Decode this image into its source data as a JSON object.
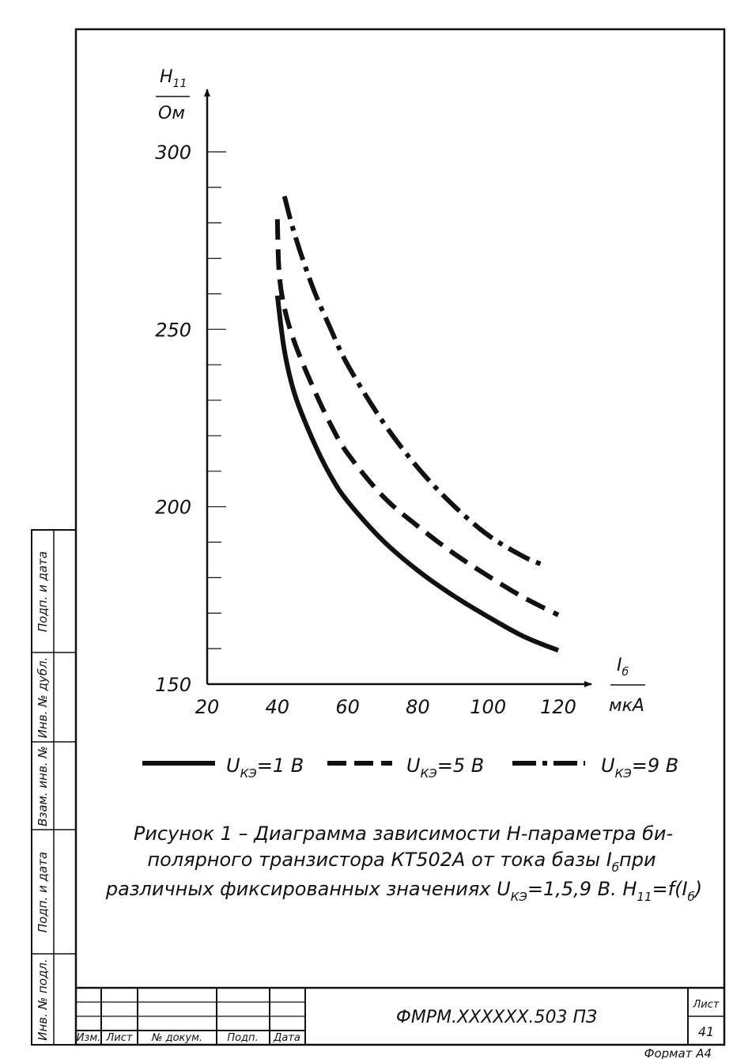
{
  "chart_data": {
    "type": "line",
    "y_axis": {
      "label_top": "H",
      "label_top_sub": "11",
      "label_bottom": "Ом",
      "ylim": [
        150,
        300
      ],
      "ticks": [
        150,
        200,
        250,
        300
      ]
    },
    "x_axis": {
      "label_top": "I",
      "label_top_sub": "б",
      "label_bottom": "мкА",
      "xlim": [
        20,
        120
      ],
      "ticks": [
        20,
        40,
        60,
        80,
        100,
        120
      ]
    },
    "series": [
      {
        "name": "1 В",
        "style": "solid",
        "x": [
          40,
          42,
          45,
          50,
          55,
          60,
          70,
          80,
          90,
          100,
          110,
          120
        ],
        "y": [
          259.5,
          244,
          231.5,
          219,
          209,
          201.5,
          190.5,
          182,
          175,
          169,
          163.5,
          159.5
        ]
      },
      {
        "name": "5 В",
        "style": "dashed",
        "x": [
          40,
          40.5,
          42,
          45,
          50,
          55,
          60,
          70,
          80,
          90,
          100,
          110,
          120
        ],
        "y": [
          281,
          266,
          256,
          246,
          234,
          223.5,
          215,
          203,
          194.5,
          187,
          180.5,
          174.5,
          169.5
        ]
      },
      {
        "name": "9 В",
        "style": "dash-dot",
        "x": [
          42,
          45,
          50,
          55,
          60,
          70,
          80,
          90,
          100,
          110,
          116
        ],
        "y": [
          287.5,
          276.5,
          262,
          250.5,
          240,
          224,
          211,
          200.5,
          192,
          186,
          183.5
        ]
      }
    ],
    "legend": {
      "prefix": "U",
      "sub": "КЭ",
      "placement": "bottom"
    }
  },
  "caption": {
    "line1_a": "Рисунок 1   – Диаграмма зависимости H-параметра би-",
    "line2_a": "полярного транзистора КТ502А от тока базы I",
    "line2_sub": "б",
    "line2_b": "при",
    "line3_a": "различных фиксированных значениях U",
    "line3_sub1": "КЭ",
    "line3_b": "=1,5,9 В.   H",
    "line3_sub2": "11",
    "line3_c": "=f(I",
    "line3_sub3": "б",
    "line3_d": ")"
  },
  "side_stamp": [
    "Подп. и дата",
    "Инв. № дубл.",
    "Взам. инв. №",
    "Подп. и дата",
    "Инв. № подл."
  ],
  "title_block": {
    "columns": [
      "Изм.",
      "Лист",
      "№ докум.",
      "Подп.",
      "Дата"
    ],
    "designation": "ФМРМ.XXXXXX.503 ПЗ",
    "sheet_label": "Лист",
    "sheet_number": "41"
  },
  "format_label": "Формат   А4"
}
